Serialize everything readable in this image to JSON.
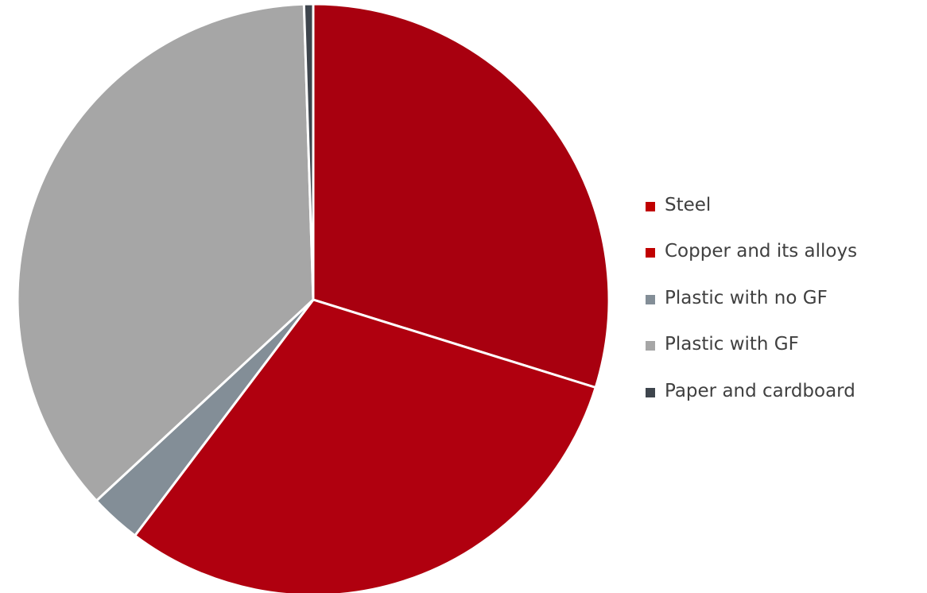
{
  "chart_data": {
    "type": "pie",
    "title": "",
    "categories": [
      "Steel",
      "Copper and its alloys",
      "Plastic with no GF",
      "Plastic with GF",
      "Paper and cardboard"
    ],
    "values": [
      29.8,
      30.5,
      2.8,
      36.4,
      0.5
    ],
    "colors": [
      "#a8000f",
      "#b0000f",
      "#838e97",
      "#a6a6a6",
      "#3e454d"
    ],
    "start_angle_deg": 0,
    "direction": "clockwise",
    "slice_border_color": "#ffffff",
    "legend": {
      "placement": "right",
      "marker_colors": [
        "#c00000",
        "#c00000",
        "#838e97",
        "#a6a6a6",
        "#3e454d"
      ]
    }
  }
}
